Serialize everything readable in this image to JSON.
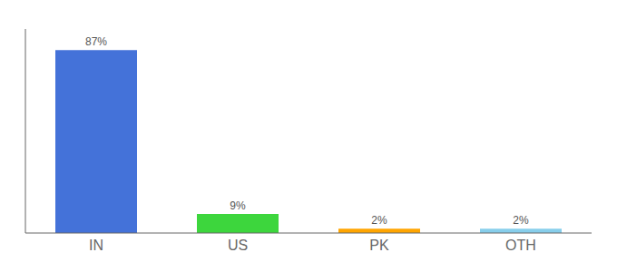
{
  "chart_data": {
    "type": "bar",
    "categories": [
      "IN",
      "US",
      "PK",
      "OTH"
    ],
    "values": [
      87,
      9,
      2,
      2
    ],
    "value_labels": [
      "87%",
      "9%",
      "2%",
      "2%"
    ],
    "colors": [
      "#4472D9",
      "#3DD63D",
      "#FFA500",
      "#87CEEB"
    ],
    "ylim": [
      0,
      97
    ],
    "data_labels": true,
    "tick_labels": "x"
  }
}
